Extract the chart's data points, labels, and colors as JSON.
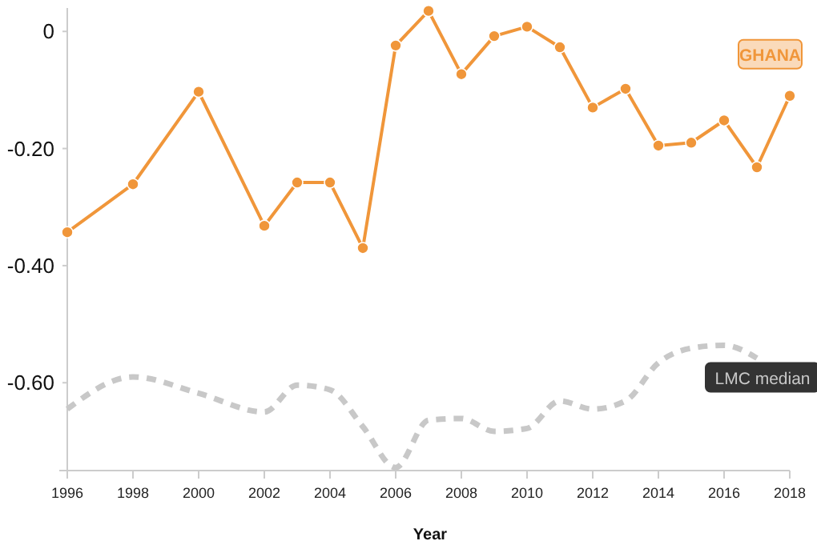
{
  "chart_data": {
    "type": "line",
    "xlabel": "Year",
    "x": [
      1996,
      1998,
      2000,
      2002,
      2003,
      2004,
      2005,
      2006,
      2007,
      2008,
      2009,
      2010,
      2011,
      2012,
      2013,
      2014,
      2015,
      2016,
      2017,
      2018
    ],
    "series": [
      {
        "name": "GHANA",
        "color": "#f0963a",
        "marker": "circle",
        "line_style": "solid",
        "values": [
          -0.343,
          -0.261,
          -0.103,
          -0.332,
          -0.258,
          -0.258,
          -0.37,
          -0.024,
          0.035,
          -0.073,
          -0.008,
          0.008,
          -0.027,
          -0.13,
          -0.098,
          -0.195,
          -0.19,
          -0.152,
          -0.232,
          -0.11
        ]
      },
      {
        "name": "LMC median",
        "color": "#c8c8c8",
        "marker": "none",
        "line_style": "dashed",
        "values": [
          -0.645,
          -0.59,
          -0.618,
          -0.65,
          -0.604,
          -0.612,
          -0.675,
          -0.745,
          -0.664,
          -0.661,
          -0.683,
          -0.678,
          -0.631,
          -0.645,
          -0.631,
          -0.566,
          -0.541,
          -0.536,
          -0.558,
          null
        ]
      }
    ],
    "xlim": [
      1996,
      2018
    ],
    "xticks": [
      1996,
      1998,
      2000,
      2002,
      2004,
      2006,
      2008,
      2010,
      2012,
      2014,
      2016,
      2018
    ],
    "ylim": [
      -0.75,
      0.04
    ],
    "yticks": [
      {
        "value": 0,
        "label": "0"
      },
      {
        "value": -0.2,
        "label": "-0.20"
      },
      {
        "value": -0.4,
        "label": "-0.40"
      },
      {
        "value": -0.6,
        "label": "-0.60"
      }
    ],
    "grid": false
  }
}
